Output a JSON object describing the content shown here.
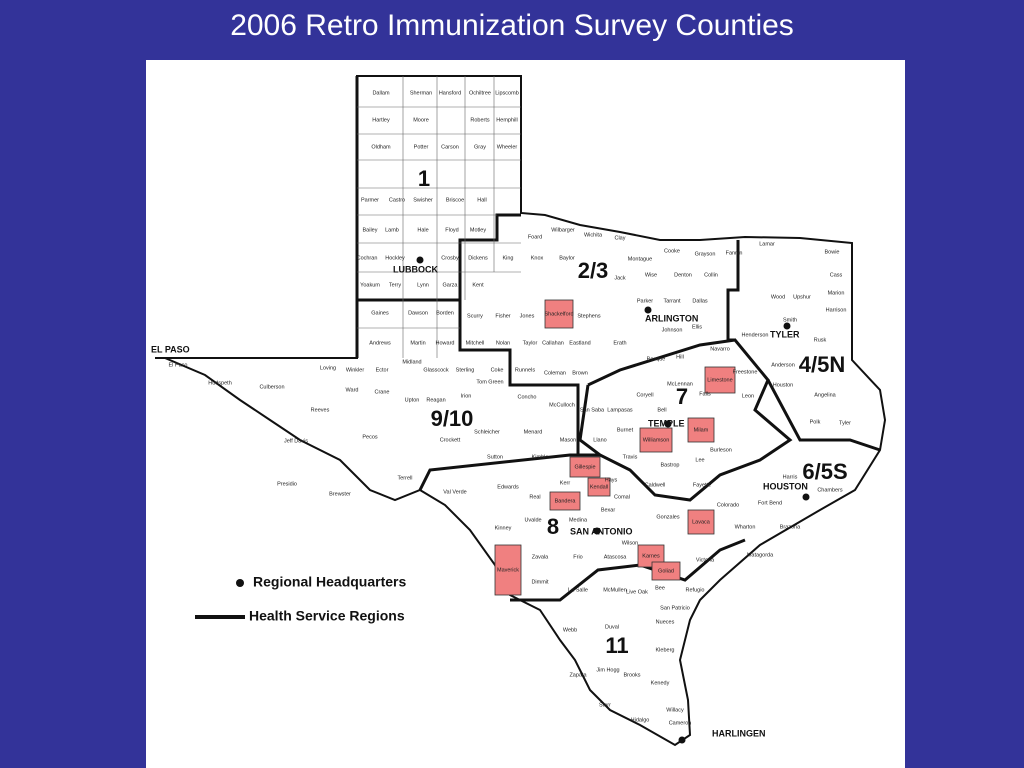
{
  "title": "2006 Retro Immunization Survey Counties",
  "regions": [
    "1",
    "2/3",
    "4/5N",
    "6/5S",
    "7",
    "8",
    "9/10",
    "11"
  ],
  "cities": [
    "LUBBOCK",
    "ARLINGTON",
    "TYLER",
    "TEMPLE",
    "HOUSTON",
    "SAN ANTONIO",
    "HARLINGEN",
    "EL PASO"
  ],
  "legend": [
    "Regional Headquarters",
    "Health Service Regions"
  ],
  "highlighted_counties": [
    "Shackelford",
    "Limestone",
    "Milam",
    "Williamson",
    "Gillespie",
    "Kendall",
    "Bandera",
    "Lavaca",
    "Karnes",
    "Goliad",
    "Maverick"
  ],
  "counties": [
    "Dallam",
    "Sherman",
    "Hansford",
    "Ochiltree",
    "Lipscomb",
    "Hartley",
    "Moore",
    "Roberts",
    "Hemphill",
    "Oldham",
    "Potter",
    "Carson",
    "Gray",
    "Wheeler",
    "Parmer",
    "Castro",
    "Swisher",
    "Briscoe",
    "Hall",
    "Bailey",
    "Lamb",
    "Hale",
    "Floyd",
    "Motley",
    "Cochran",
    "Hockley",
    "Crosby",
    "Dickens",
    "King",
    "Yoakum",
    "Terry",
    "Lynn",
    "Garza",
    "Kent",
    "Gaines",
    "Dawson",
    "Borden",
    "Andrews",
    "Martin",
    "Howard",
    "Hudspeth",
    "Culberson",
    "Reeves",
    "Pecos",
    "Jeff Davis",
    "Presidio",
    "Brewster",
    "Terrell",
    "Crockett",
    "Val Verde",
    "Kinney",
    "Zavala",
    "Dimmit",
    "La Salle",
    "Webb",
    "Zapata",
    "Starr",
    "Hidalgo",
    "Cameron",
    "Willacy",
    "Kenedy",
    "Brooks",
    "Kleberg",
    "Nueces",
    "Duval",
    "Live Oak",
    "Bee",
    "Wilson",
    "Atascosa",
    "Frio",
    "Medina",
    "Uvalde",
    "Real",
    "Kerr",
    "Edwards",
    "Sutton",
    "Schleicher",
    "Menard",
    "Kimble",
    "Mason",
    "Llano",
    "Burnet",
    "Travis",
    "Hays",
    "Comal",
    "Bexar",
    "Gonzales",
    "Victoria",
    "Wharton",
    "Matagorda",
    "Brazoria",
    "Fort Bend",
    "Harris",
    "Chambers",
    "Polk",
    "Tyler",
    "Angelina",
    "Houston",
    "Anderson",
    "Henderson",
    "Smith",
    "Rusk",
    "Harrison",
    "Wood",
    "Upshur",
    "Marion",
    "Cass",
    "Bowie",
    "Lamar",
    "Fannin",
    "Grayson",
    "Cooke",
    "Montague",
    "Clay",
    "Wichita",
    "Wilbarger",
    "Foard",
    "Knox",
    "Baylor",
    "Jack",
    "Wise",
    "Denton",
    "Collin",
    "Parker",
    "Tarrant",
    "Dallas",
    "Ellis",
    "Johnson",
    "Erath",
    "Eastland",
    "Callahan",
    "Taylor",
    "Jones",
    "Fisher",
    "Scurry",
    "Mitchell",
    "Nolan",
    "Stephens",
    "Coleman",
    "Brown",
    "Runnels",
    "Coke",
    "Sterling",
    "Glasscock",
    "Midland",
    "Ector",
    "Winkler",
    "Loving",
    "Ward",
    "Crane",
    "Upton",
    "Reagan",
    "Irion",
    "Tom Green",
    "Concho",
    "McCulloch",
    "San Saba",
    "Lampasas",
    "Coryell",
    "Bell",
    "McLennan",
    "Bosque",
    "Hill",
    "Navarro",
    "Freestone",
    "Leon",
    "Falls",
    "Burleson",
    "Lee",
    "Bastrop",
    "Fayette",
    "Caldwell",
    "Colorado",
    "Refugio",
    "San Patricio",
    "McMullen",
    "Jim Hogg",
    "El Paso"
  ]
}
